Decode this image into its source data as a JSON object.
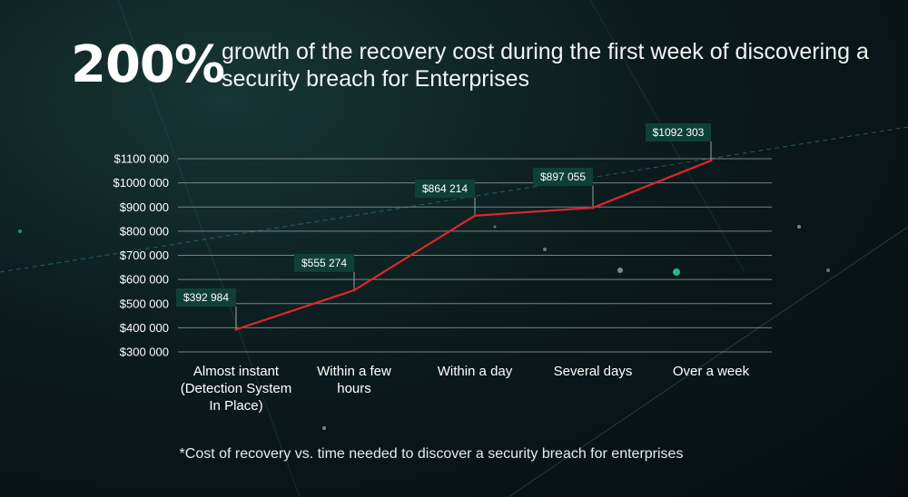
{
  "headline": {
    "big_number": "200%",
    "text": "growth of the recovery cost during the first week of discovering a security breach for Enterprises"
  },
  "footnote": "*Cost of recovery vs. time needed to discover a security breach for enterprises",
  "colors": {
    "line": "#e0262b",
    "label_bg": "#0f4037",
    "grid": "#9aa4a6",
    "text": "#ffffff"
  },
  "chart_data": {
    "type": "line",
    "title": "",
    "xlabel": "",
    "ylabel": "",
    "categories": [
      "Almost instant (Detection System In Place)",
      "Within a few hours",
      "Within a day",
      "Several days",
      "Over a week"
    ],
    "category_lines": [
      [
        "Almost instant",
        "(Detection System",
        "In Place)"
      ],
      [
        "Within a few",
        "hours"
      ],
      [
        "Within a day"
      ],
      [
        "Several days"
      ],
      [
        "Over a week"
      ]
    ],
    "values": [
      392984,
      555274,
      864214,
      897055,
      1092303
    ],
    "data_labels": [
      "$392 984",
      "$555 274",
      "$864 214",
      "$897 055",
      "$1092 303"
    ],
    "y_ticks": [
      "$300 000",
      "$400 000",
      "$500 000",
      "$600 000",
      "$700 000",
      "$800 000",
      "$900 000",
      "$1000 000",
      "$1100 000"
    ],
    "ylim": [
      300000,
      1100000
    ],
    "grid": true,
    "legend": "none"
  }
}
